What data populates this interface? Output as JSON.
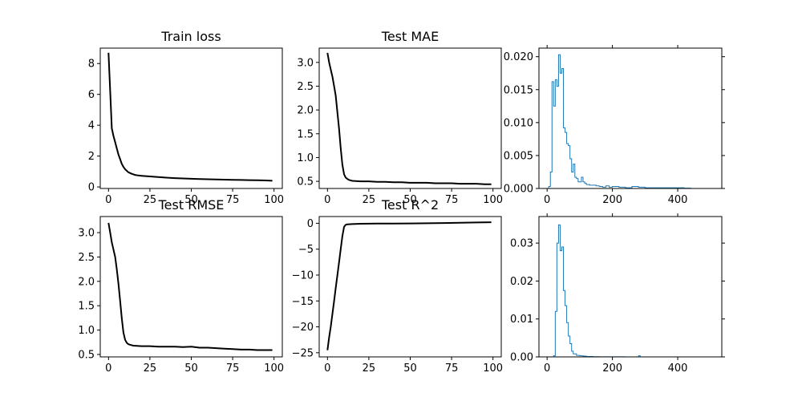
{
  "chart_data": [
    {
      "type": "line",
      "title": "Train loss",
      "xlabel": "",
      "ylabel": "",
      "xlim": [
        -5,
        105
      ],
      "ylim": [
        -0.1,
        9
      ],
      "xticks": [
        0,
        25,
        50,
        75,
        100
      ],
      "yticks": [
        0,
        2,
        4,
        6,
        8
      ],
      "ytick_labels": [
        "0",
        "2",
        "4",
        "6",
        "8"
      ],
      "grid": false,
      "series": [
        {
          "color": "#000000",
          "x": [
            0,
            1,
            2,
            3,
            4,
            5,
            6,
            7,
            8,
            9,
            10,
            12,
            14,
            16,
            18,
            20,
            25,
            30,
            35,
            40,
            45,
            50,
            55,
            60,
            65,
            70,
            75,
            80,
            85,
            90,
            95,
            99
          ],
          "y": [
            8.7,
            6.2,
            3.8,
            3.3,
            2.9,
            2.5,
            2.1,
            1.8,
            1.5,
            1.3,
            1.15,
            0.95,
            0.85,
            0.78,
            0.74,
            0.72,
            0.68,
            0.64,
            0.6,
            0.57,
            0.55,
            0.53,
            0.51,
            0.5,
            0.48,
            0.47,
            0.46,
            0.45,
            0.44,
            0.43,
            0.42,
            0.4
          ]
        }
      ]
    },
    {
      "type": "line",
      "title": "Test MAE",
      "xlabel": "",
      "ylabel": "",
      "xlim": [
        -5,
        105
      ],
      "ylim": [
        0.35,
        3.3
      ],
      "xticks": [
        0,
        25,
        50,
        75,
        100
      ],
      "yticks": [
        0.5,
        1.0,
        1.5,
        2.0,
        2.5,
        3.0
      ],
      "ytick_labels": [
        "0.5",
        "1.0",
        "1.5",
        "2.0",
        "2.5",
        "3.0"
      ],
      "grid": false,
      "series": [
        {
          "color": "#000000",
          "x": [
            0,
            1,
            2,
            3,
            4,
            5,
            6,
            7,
            8,
            9,
            10,
            11,
            12,
            13,
            14,
            15,
            20,
            25,
            30,
            35,
            40,
            45,
            50,
            55,
            60,
            65,
            70,
            75,
            80,
            85,
            90,
            95,
            99
          ],
          "y": [
            3.2,
            3.0,
            2.85,
            2.7,
            2.5,
            2.3,
            1.95,
            1.6,
            1.2,
            0.85,
            0.65,
            0.58,
            0.55,
            0.53,
            0.52,
            0.51,
            0.5,
            0.5,
            0.49,
            0.49,
            0.48,
            0.48,
            0.47,
            0.47,
            0.47,
            0.46,
            0.46,
            0.46,
            0.45,
            0.45,
            0.45,
            0.44,
            0.44
          ]
        }
      ]
    },
    {
      "type": "histogram",
      "title": "",
      "xlabel": "",
      "ylabel": "",
      "xlim": [
        -25,
        535
      ],
      "ylim": [
        0,
        0.0213
      ],
      "xticks": [
        0,
        200,
        400
      ],
      "yticks": [
        0.0,
        0.005,
        0.01,
        0.015,
        0.02
      ],
      "ytick_labels": [
        "0.000",
        "0.005",
        "0.010",
        "0.015",
        "0.020"
      ],
      "grid": false,
      "series": [
        {
          "color": "#1f77b4",
          "bin_edges": [
            0,
            5,
            10,
            15,
            20,
            25,
            30,
            35,
            40,
            45,
            50,
            55,
            60,
            65,
            70,
            75,
            80,
            85,
            90,
            95,
            100,
            105,
            110,
            115,
            120,
            130,
            140,
            150,
            160,
            170,
            180,
            190,
            200,
            220,
            240,
            260,
            280,
            300,
            320,
            340,
            360,
            380,
            400,
            420,
            440,
            460,
            480,
            500
          ],
          "values": [
            0,
            0.0003,
            0.0025,
            0.0162,
            0.0125,
            0.0165,
            0.0155,
            0.0203,
            0.0175,
            0.0182,
            0.0092,
            0.0085,
            0.0068,
            0.0065,
            0.0045,
            0.0025,
            0.0037,
            0.0017,
            0.0015,
            0.001,
            0.001,
            0.0017,
            0.001,
            0.0008,
            0.0006,
            0.0005,
            0.0005,
            0.0004,
            0.0003,
            0.0002,
            0.0004,
            0.0002,
            0.0003,
            0.0002,
            0.0001,
            0.0003,
            0.0002,
            0.0001,
            0.0001,
            0.0001,
            0.0001,
            0.0001,
            0.0001,
            5e-05,
            0,
            0,
            0
          ]
        }
      ]
    },
    {
      "type": "line",
      "title": "Test RMSE",
      "xlabel": "",
      "ylabel": "",
      "xlim": [
        -5,
        105
      ],
      "ylim": [
        0.45,
        3.33
      ],
      "xticks": [
        0,
        25,
        50,
        75,
        100
      ],
      "yticks": [
        0.5,
        1.0,
        1.5,
        2.0,
        2.5,
        3.0
      ],
      "ytick_labels": [
        "0.5",
        "1.0",
        "1.5",
        "2.0",
        "2.5",
        "3.0"
      ],
      "grid": false,
      "series": [
        {
          "color": "#000000",
          "x": [
            0,
            1,
            2,
            3,
            4,
            5,
            6,
            7,
            8,
            9,
            10,
            11,
            12,
            13,
            14,
            15,
            20,
            25,
            30,
            35,
            40,
            45,
            50,
            55,
            60,
            65,
            70,
            75,
            80,
            85,
            90,
            95,
            99
          ],
          "y": [
            3.2,
            3.0,
            2.8,
            2.65,
            2.5,
            2.25,
            1.95,
            1.6,
            1.25,
            0.95,
            0.8,
            0.74,
            0.71,
            0.7,
            0.69,
            0.68,
            0.67,
            0.67,
            0.66,
            0.66,
            0.66,
            0.65,
            0.66,
            0.64,
            0.64,
            0.63,
            0.62,
            0.61,
            0.6,
            0.6,
            0.59,
            0.59,
            0.59
          ]
        }
      ]
    },
    {
      "type": "line",
      "title": "Test R^2",
      "xlabel": "",
      "ylabel": "",
      "xlim": [
        -5,
        105
      ],
      "ylim": [
        -25.8,
        1.3
      ],
      "xticks": [
        0,
        25,
        50,
        75,
        100
      ],
      "yticks": [
        -25,
        -20,
        -15,
        -10,
        -5,
        0
      ],
      "ytick_labels": [
        "−25",
        "−20",
        "−15",
        "−10",
        "−5",
        "0"
      ],
      "grid": false,
      "series": [
        {
          "color": "#000000",
          "x": [
            0,
            1,
            2,
            3,
            4,
            5,
            6,
            7,
            8,
            9,
            10,
            11,
            12,
            15,
            20,
            25,
            30,
            40,
            50,
            60,
            70,
            80,
            90,
            99
          ],
          "y": [
            -24.5,
            -22.0,
            -20.0,
            -17.5,
            -15.0,
            -12.5,
            -10.0,
            -7.5,
            -5.0,
            -2.5,
            -0.7,
            -0.3,
            -0.2,
            -0.15,
            -0.1,
            -0.08,
            -0.06,
            -0.05,
            -0.03,
            0.0,
            0.05,
            0.1,
            0.15,
            0.2
          ]
        }
      ]
    },
    {
      "type": "histogram",
      "title": "",
      "xlabel": "",
      "ylabel": "",
      "xlim": [
        -25,
        535
      ],
      "ylim": [
        0,
        0.037
      ],
      "xticks": [
        0,
        200,
        400
      ],
      "yticks": [
        0.0,
        0.01,
        0.02,
        0.03
      ],
      "ytick_labels": [
        "0.00",
        "0.01",
        "0.02",
        "0.03"
      ],
      "grid": false,
      "series": [
        {
          "color": "#1f77b4",
          "bin_edges": [
            0,
            5,
            10,
            15,
            20,
            25,
            30,
            35,
            40,
            45,
            50,
            55,
            60,
            65,
            70,
            75,
            80,
            90,
            100,
            110,
            120,
            140,
            160,
            180,
            200,
            240,
            280,
            285,
            290,
            300,
            400,
            500
          ],
          "values": [
            0,
            0,
            0,
            0,
            0.0003,
            0.012,
            0.03,
            0.0348,
            0.028,
            0.029,
            0.0175,
            0.0135,
            0.009,
            0.0055,
            0.0035,
            0.0015,
            0.0008,
            0.0004,
            0.0003,
            0.0002,
            0.0001,
            5e-05,
            3e-05,
            2e-05,
            2e-05,
            0,
            0.0003,
            0,
            0,
            0,
            0
          ]
        }
      ]
    }
  ]
}
